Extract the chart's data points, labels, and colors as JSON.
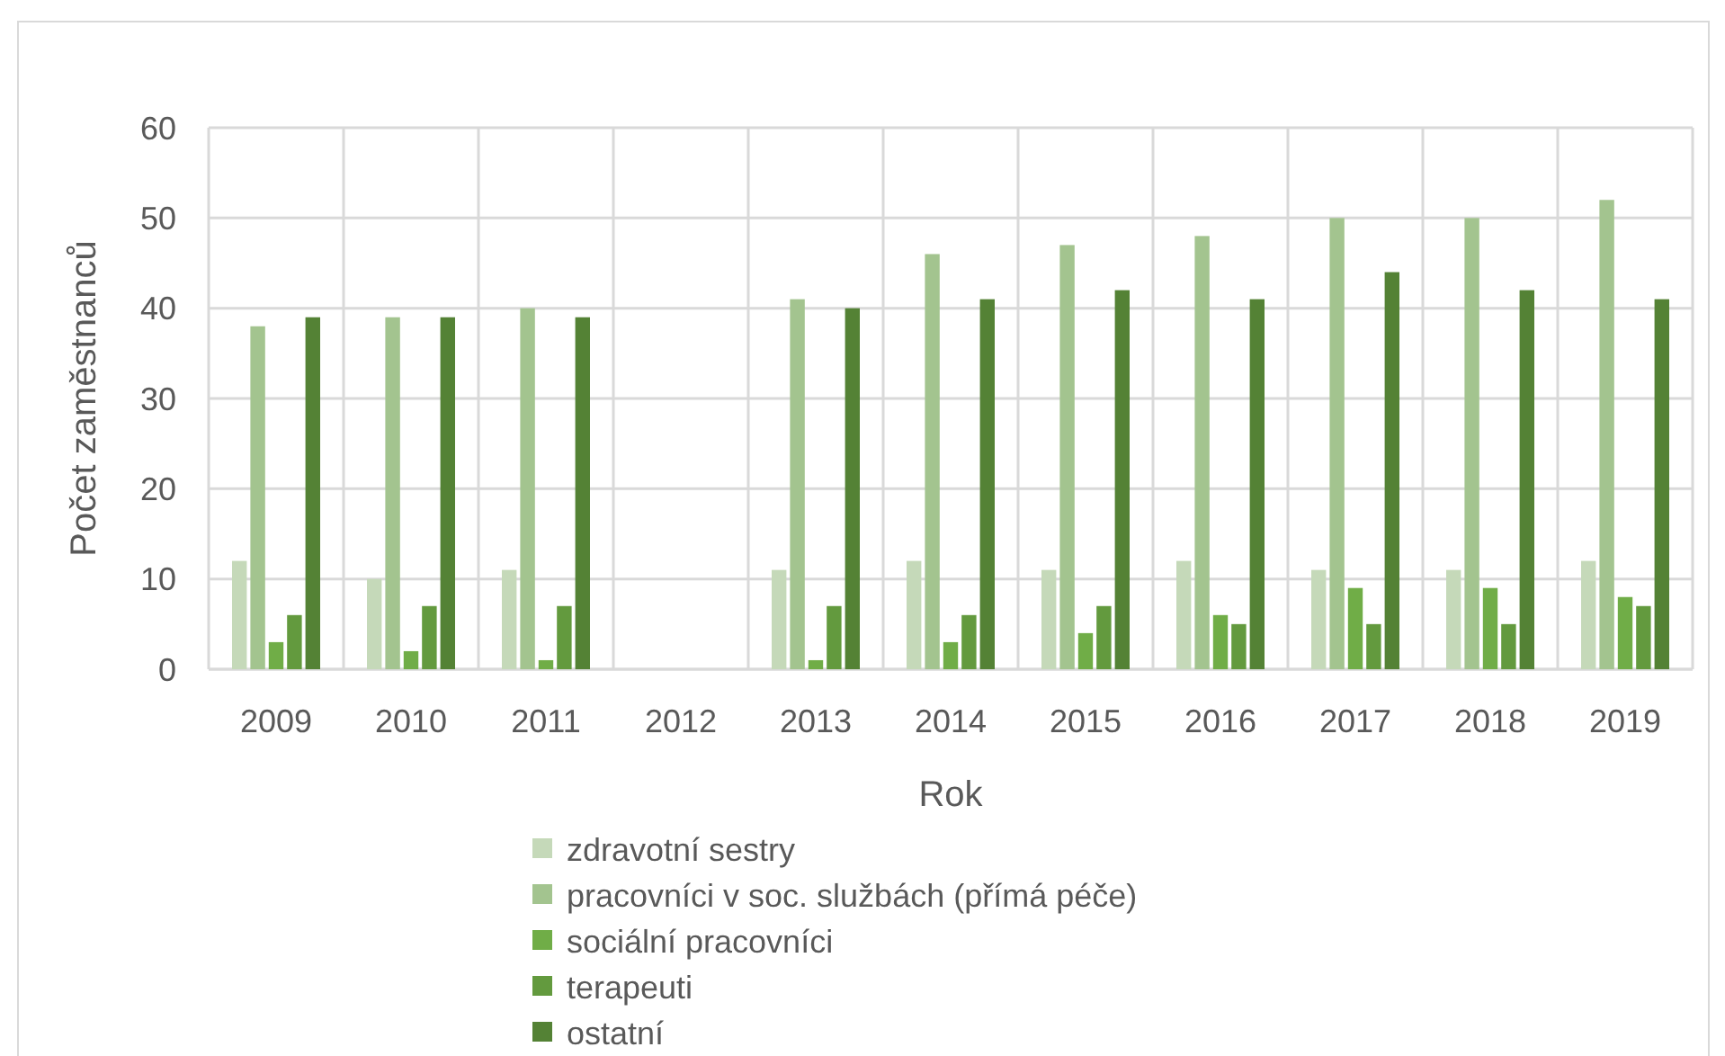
{
  "chart_data": {
    "type": "bar",
    "xlabel": "Rok",
    "ylabel": "Počet zaměstnanců",
    "categories": [
      "2009",
      "2010",
      "2011",
      "2012",
      "2013",
      "2014",
      "2015",
      "2016",
      "2017",
      "2018",
      "2019"
    ],
    "series": [
      {
        "name": "zdravotní sestry",
        "color": "#c5d9b9",
        "values": [
          12,
          10,
          11,
          null,
          11,
          12,
          11,
          12,
          11,
          11,
          12
        ]
      },
      {
        "name": "pracovníci v soc. službách (přímá péče)",
        "color": "#a3c48f",
        "values": [
          38,
          39,
          40,
          null,
          41,
          46,
          47,
          48,
          50,
          50,
          52
        ]
      },
      {
        "name": "sociální pracovníci",
        "color": "#70ad47",
        "values": [
          3,
          2,
          1,
          null,
          1,
          3,
          4,
          6,
          9,
          9,
          8
        ]
      },
      {
        "name": "terapeuti",
        "color": "#639a3e",
        "values": [
          6,
          7,
          7,
          null,
          7,
          6,
          7,
          5,
          5,
          5,
          7
        ]
      },
      {
        "name": "ostatní",
        "color": "#548235",
        "values": [
          39,
          39,
          39,
          null,
          40,
          41,
          42,
          41,
          44,
          42,
          41
        ]
      }
    ],
    "ylim": [
      0,
      60
    ],
    "yticks": [
      0,
      10,
      20,
      30,
      40,
      50,
      60
    ],
    "grid": true,
    "legend": "bottom"
  }
}
